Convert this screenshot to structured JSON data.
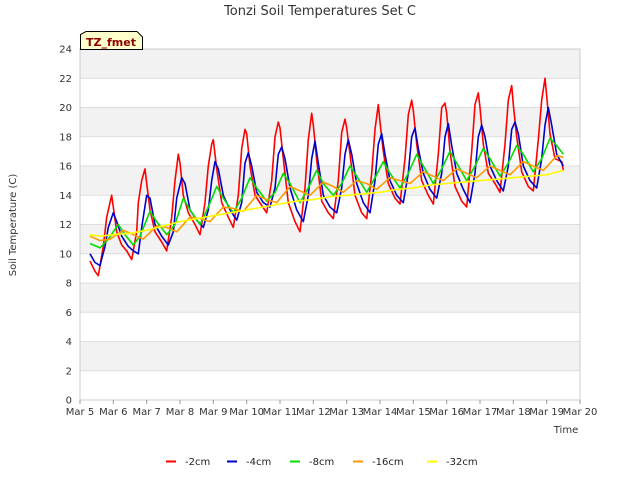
{
  "chart_data": {
    "type": "line",
    "title": "Tonzi Soil Temperatures Set C",
    "xlabel": "Time",
    "ylabel": "Soil Temperature (C)",
    "badge": "TZ_fmet",
    "ylim": [
      0,
      24
    ],
    "y_ticks": [
      0,
      2,
      4,
      6,
      8,
      10,
      12,
      14,
      16,
      18,
      20,
      22,
      24
    ],
    "xlim": [
      5,
      20
    ],
    "x_ticks": [
      5,
      6,
      7,
      8,
      9,
      10,
      11,
      12,
      13,
      14,
      15,
      16,
      17,
      18,
      19,
      20
    ],
    "x_tick_labels": [
      "Mar 5",
      "Mar 6",
      "Mar 7",
      "Mar 8",
      "Mar 9",
      "Mar 10",
      "Mar 11",
      "Mar 12",
      "Mar 13",
      "Mar 14",
      "Mar 15",
      "Mar 16",
      "Mar 17",
      "Mar 18",
      "Mar 19",
      "Mar 20"
    ],
    "grid": "horizontal",
    "legend_position": "bottom",
    "series": [
      {
        "name": "-2cm",
        "color": "#ff0000",
        "x": [
          5.3,
          5.45,
          5.55,
          5.7,
          5.8,
          5.95,
          6.0,
          6.1,
          6.25,
          6.4,
          6.55,
          6.7,
          6.75,
          6.85,
          6.95,
          7.0,
          7.1,
          7.25,
          7.45,
          7.6,
          7.75,
          7.85,
          7.95,
          8.0,
          8.1,
          8.25,
          8.45,
          8.6,
          8.75,
          8.85,
          8.95,
          9.0,
          9.1,
          9.25,
          9.45,
          9.6,
          9.75,
          9.85,
          9.95,
          10.0,
          10.1,
          10.25,
          10.45,
          10.6,
          10.75,
          10.85,
          10.95,
          11.0,
          11.1,
          11.25,
          11.45,
          11.6,
          11.75,
          11.85,
          11.95,
          12.0,
          12.1,
          12.25,
          12.45,
          12.6,
          12.75,
          12.85,
          12.95,
          13.0,
          13.1,
          13.25,
          13.45,
          13.6,
          13.75,
          13.85,
          13.95,
          14.0,
          14.1,
          14.25,
          14.45,
          14.6,
          14.75,
          14.85,
          14.95,
          15.0,
          15.1,
          15.25,
          15.45,
          15.6,
          15.75,
          15.85,
          15.95,
          16.0,
          16.1,
          16.25,
          16.45,
          16.6,
          16.75,
          16.85,
          16.95,
          17.0,
          17.1,
          17.25,
          17.45,
          17.6,
          17.75,
          17.85,
          17.95,
          18.0,
          18.1,
          18.25,
          18.45,
          18.6,
          18.75,
          18.85,
          18.95,
          19.0,
          19.1,
          19.25,
          19.45,
          19.5
        ],
        "y": [
          9.5,
          8.8,
          8.5,
          10.5,
          12.5,
          14.0,
          13.2,
          11.5,
          10.6,
          10.2,
          9.6,
          11.5,
          13.5,
          15.0,
          15.8,
          14.8,
          13.0,
          11.5,
          10.8,
          10.2,
          12.5,
          15.0,
          16.8,
          16.2,
          14.0,
          12.8,
          12.0,
          11.3,
          13.5,
          16.0,
          17.5,
          17.8,
          15.8,
          13.5,
          12.5,
          11.8,
          14.0,
          17.2,
          18.5,
          18.2,
          16.0,
          14.0,
          13.3,
          12.8,
          15.0,
          18.0,
          19.0,
          18.6,
          16.5,
          13.5,
          12.2,
          11.5,
          14.5,
          17.8,
          19.6,
          18.8,
          16.4,
          13.6,
          12.8,
          12.4,
          15.0,
          18.3,
          19.2,
          18.6,
          16.8,
          14.0,
          12.8,
          12.4,
          15.5,
          18.5,
          20.2,
          19.0,
          17.0,
          14.8,
          13.8,
          13.4,
          16.5,
          19.5,
          20.5,
          19.8,
          17.5,
          15.0,
          14.0,
          13.4,
          16.8,
          20.0,
          20.3,
          19.6,
          17.0,
          14.6,
          13.6,
          13.2,
          17.0,
          20.2,
          21.0,
          20.0,
          17.5,
          15.5,
          14.8,
          14.2,
          17.5,
          20.5,
          21.5,
          20.2,
          18.0,
          15.6,
          14.6,
          14.3,
          17.8,
          20.5,
          22.0,
          20.8,
          18.2,
          16.5,
          16.3,
          15.7
        ]
      },
      {
        "name": "-4cm",
        "color": "#0000cc",
        "x": [
          5.3,
          5.45,
          5.6,
          5.75,
          5.85,
          6.0,
          6.1,
          6.25,
          6.45,
          6.6,
          6.75,
          6.85,
          7.0,
          7.1,
          7.25,
          7.45,
          7.65,
          7.8,
          7.9,
          8.05,
          8.15,
          8.3,
          8.5,
          8.7,
          8.85,
          8.95,
          9.05,
          9.15,
          9.3,
          9.5,
          9.7,
          9.85,
          9.95,
          10.05,
          10.15,
          10.3,
          10.5,
          10.7,
          10.85,
          10.95,
          11.05,
          11.15,
          11.3,
          11.5,
          11.7,
          11.85,
          11.95,
          12.05,
          12.15,
          12.3,
          12.5,
          12.7,
          12.85,
          12.95,
          13.05,
          13.15,
          13.3,
          13.5,
          13.7,
          13.85,
          13.95,
          14.05,
          14.15,
          14.3,
          14.5,
          14.7,
          14.85,
          14.95,
          15.05,
          15.15,
          15.3,
          15.5,
          15.7,
          15.85,
          15.95,
          16.05,
          16.15,
          16.3,
          16.5,
          16.7,
          16.85,
          16.95,
          17.05,
          17.15,
          17.3,
          17.5,
          17.7,
          17.85,
          17.95,
          18.05,
          18.15,
          18.3,
          18.5,
          18.7,
          18.85,
          18.95,
          19.05,
          19.15,
          19.3,
          19.5
        ],
        "y": [
          10.0,
          9.4,
          9.2,
          10.5,
          11.8,
          12.8,
          12.2,
          11.2,
          10.5,
          10.2,
          10.0,
          11.8,
          14.0,
          13.8,
          12.0,
          11.2,
          10.6,
          11.5,
          13.8,
          15.2,
          14.8,
          13.0,
          12.3,
          11.8,
          13.0,
          15.0,
          16.3,
          15.8,
          14.0,
          13.0,
          12.3,
          13.5,
          16.2,
          16.9,
          16.0,
          14.2,
          13.5,
          13.2,
          14.5,
          16.8,
          17.3,
          16.5,
          14.5,
          13.0,
          12.2,
          14.0,
          16.5,
          17.7,
          16.2,
          14.0,
          13.2,
          12.8,
          14.5,
          16.8,
          17.8,
          16.8,
          14.8,
          13.5,
          12.8,
          15.0,
          17.5,
          18.2,
          16.8,
          15.0,
          14.0,
          13.5,
          15.5,
          18.0,
          18.6,
          17.2,
          15.5,
          14.4,
          13.8,
          15.5,
          18.0,
          18.9,
          17.4,
          15.5,
          14.4,
          13.5,
          15.5,
          18.0,
          18.8,
          18.0,
          16.0,
          15.0,
          14.3,
          16.0,
          18.5,
          19.0,
          18.2,
          16.0,
          15.0,
          14.5,
          16.5,
          18.8,
          20.0,
          18.8,
          16.8,
          16.0
        ]
      },
      {
        "name": "-8cm",
        "color": "#00dd00",
        "x": [
          5.3,
          5.6,
          5.85,
          6.15,
          6.35,
          6.6,
          6.8,
          7.1,
          7.3,
          7.6,
          7.85,
          8.1,
          8.3,
          8.6,
          8.85,
          9.1,
          9.3,
          9.6,
          9.85,
          10.1,
          10.3,
          10.6,
          10.85,
          11.1,
          11.3,
          11.6,
          11.85,
          12.1,
          12.3,
          12.6,
          12.85,
          13.1,
          13.3,
          13.6,
          13.85,
          14.1,
          14.3,
          14.6,
          14.85,
          15.1,
          15.3,
          15.6,
          15.85,
          16.1,
          16.3,
          16.6,
          16.85,
          17.1,
          17.3,
          17.6,
          17.85,
          18.1,
          18.3,
          18.6,
          18.85,
          19.1,
          19.3,
          19.5
        ],
        "y": [
          10.7,
          10.4,
          11.0,
          12.0,
          11.3,
          10.6,
          11.2,
          12.9,
          12.2,
          11.3,
          12.0,
          13.8,
          13.0,
          12.0,
          13.2,
          14.6,
          13.8,
          12.8,
          13.8,
          15.2,
          14.5,
          13.6,
          14.2,
          15.5,
          14.8,
          13.5,
          14.5,
          15.7,
          14.8,
          14.0,
          14.8,
          16.0,
          15.3,
          14.2,
          15.2,
          16.3,
          15.5,
          14.5,
          15.5,
          16.8,
          16.0,
          14.8,
          15.8,
          17.0,
          16.2,
          15.0,
          16.0,
          17.2,
          16.5,
          15.3,
          16.2,
          17.4,
          16.8,
          15.6,
          16.5,
          17.9,
          17.4,
          16.8
        ]
      },
      {
        "name": "-16cm",
        "color": "#ff9900",
        "x": [
          5.3,
          5.6,
          5.9,
          6.3,
          6.6,
          6.9,
          7.3,
          7.6,
          7.9,
          8.3,
          8.6,
          8.9,
          9.3,
          9.6,
          9.9,
          10.3,
          10.6,
          10.9,
          11.3,
          11.6,
          11.9,
          12.3,
          12.6,
          12.9,
          13.3,
          13.6,
          13.9,
          14.3,
          14.6,
          14.9,
          15.3,
          15.6,
          15.9,
          16.3,
          16.6,
          16.9,
          17.3,
          17.6,
          17.9,
          18.3,
          18.6,
          18.9,
          19.3,
          19.5
        ],
        "y": [
          11.2,
          10.9,
          11.0,
          11.6,
          11.3,
          11.0,
          11.9,
          11.8,
          11.5,
          12.5,
          12.4,
          12.2,
          13.2,
          13.1,
          12.9,
          14.0,
          13.7,
          13.5,
          14.6,
          14.3,
          14.0,
          14.9,
          14.6,
          14.2,
          15.0,
          14.8,
          14.4,
          15.2,
          15.0,
          14.8,
          15.6,
          15.3,
          15.0,
          15.8,
          15.5,
          15.2,
          16.0,
          15.7,
          15.4,
          16.3,
          16.0,
          15.7,
          16.7,
          16.6
        ]
      },
      {
        "name": "-32cm",
        "color": "#ffff00",
        "x": [
          5.3,
          5.6,
          6.0,
          6.5,
          7.0,
          7.5,
          8.0,
          8.5,
          9.0,
          9.5,
          10.0,
          10.5,
          11.0,
          11.5,
          12.0,
          12.5,
          13.0,
          13.5,
          14.0,
          14.5,
          15.0,
          15.5,
          16.0,
          16.5,
          17.0,
          17.5,
          18.0,
          18.5,
          19.0,
          19.5
        ],
        "y": [
          11.3,
          11.2,
          11.3,
          11.4,
          11.6,
          11.9,
          12.2,
          12.4,
          12.6,
          12.8,
          13.0,
          13.2,
          13.4,
          13.6,
          13.7,
          13.9,
          14.0,
          14.1,
          14.2,
          14.4,
          14.5,
          14.7,
          14.8,
          14.9,
          15.0,
          15.1,
          15.2,
          15.3,
          15.4,
          15.7
        ]
      }
    ]
  }
}
